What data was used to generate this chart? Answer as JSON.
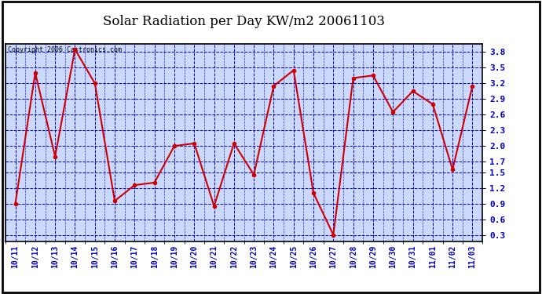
{
  "title": "Solar Radiation per Day KW/m2 20061103",
  "copyright": "Copyright 2006 Castronics.com",
  "x_labels": [
    "10/11",
    "10/12",
    "10/13",
    "10/14",
    "10/15",
    "10/16",
    "10/17",
    "10/18",
    "10/19",
    "10/20",
    "10/21",
    "10/22",
    "10/23",
    "10/24",
    "10/25",
    "10/26",
    "10/27",
    "10/28",
    "10/29",
    "10/30",
    "10/31",
    "11/01",
    "11/02",
    "11/03"
  ],
  "y_values": [
    0.9,
    3.4,
    1.8,
    3.85,
    3.2,
    0.95,
    1.25,
    1.3,
    2.0,
    2.05,
    0.85,
    2.05,
    1.45,
    3.15,
    3.45,
    1.1,
    0.3,
    3.3,
    3.35,
    2.65,
    3.05,
    2.8,
    1.55,
    3.15
  ],
  "line_color": "#cc0000",
  "marker_color": "#cc0000",
  "plot_bg_color": "#ccd9ff",
  "grid_color": "#0000cc",
  "tick_label_color": "#0000bb",
  "title_color": "#000000",
  "copyright_color": "#000000",
  "fig_bg_color": "#ffffff",
  "border_color": "#000000",
  "ylim_min": 0.18,
  "ylim_max": 3.95,
  "yticks": [
    0.3,
    0.6,
    0.9,
    1.2,
    1.5,
    1.7,
    2.0,
    2.3,
    2.6,
    2.9,
    3.2,
    3.5,
    3.8
  ]
}
